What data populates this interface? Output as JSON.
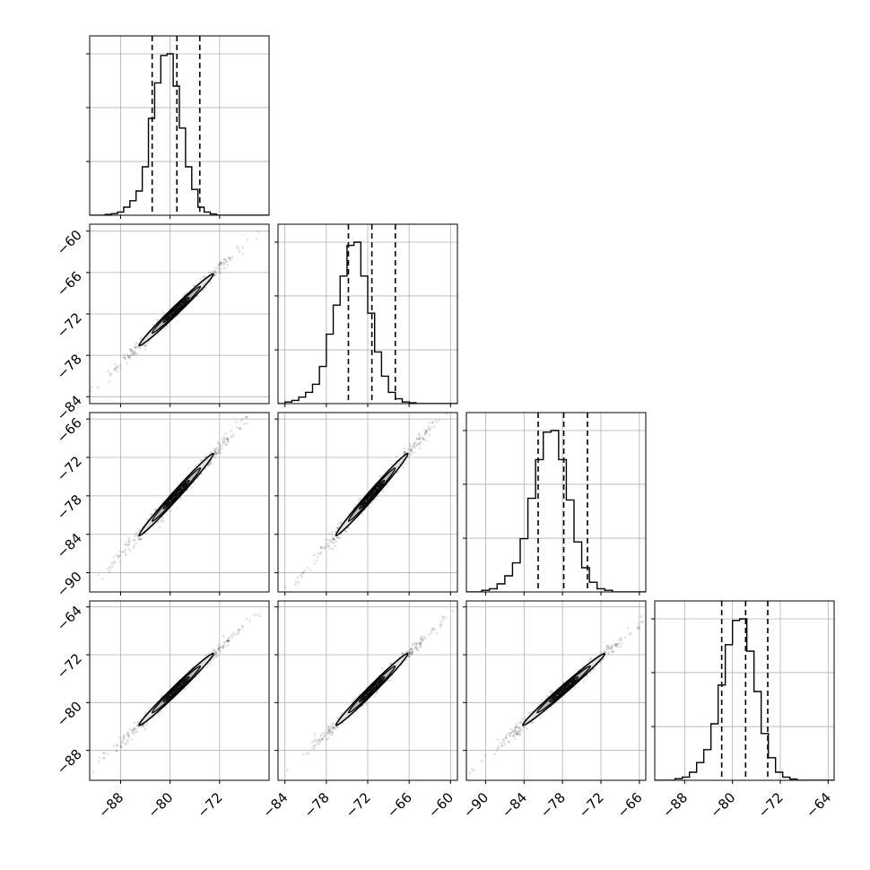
{
  "chart_data": {
    "type": "corner",
    "n_params": 4,
    "grid": true,
    "params": [
      {
        "xlim": [
          -93,
          -64
        ],
        "ticks": [
          -88,
          -80,
          -72
        ],
        "tick_labels": [
          "−88",
          "−80",
          "−72"
        ],
        "quantiles": [
          -82.9,
          -78.9,
          -75.2
        ],
        "hist": {
          "start": -90.5,
          "width": 1.0,
          "values": [
            0.005,
            0.01,
            0.02,
            0.05,
            0.09,
            0.15,
            0.3,
            0.6,
            0.82,
            0.99,
            1.0,
            0.8,
            0.54,
            0.3,
            0.16,
            0.05,
            0.02,
            0.008
          ]
        }
      },
      {
        "xlim": [
          -85,
          -59
        ],
        "ticks": [
          -84,
          -78,
          -72,
          -66,
          -60
        ],
        "tick_labels": [
          "−84",
          "−78",
          "−72",
          "−66",
          "−60"
        ],
        "quantiles": [
          -74.8,
          -71.4,
          -68.0
        ],
        "hist": {
          "start": -84.0,
          "width": 1.0,
          "values": [
            0.01,
            0.02,
            0.04,
            0.07,
            0.12,
            0.23,
            0.43,
            0.61,
            0.79,
            0.98,
            1.0,
            0.79,
            0.56,
            0.32,
            0.17,
            0.07,
            0.03,
            0.01,
            0.005
          ]
        }
      },
      {
        "xlim": [
          -93,
          -65
        ],
        "ticks": [
          -90,
          -84,
          -78,
          -72,
          -66
        ],
        "tick_labels": [
          "−90",
          "−84",
          "−78",
          "−72",
          "−66"
        ],
        "quantiles": [
          -81.8,
          -77.8,
          -74.1
        ],
        "hist": {
          "start": -90.6,
          "width": 1.2,
          "values": [
            0.01,
            0.02,
            0.05,
            0.1,
            0.18,
            0.33,
            0.58,
            0.82,
            0.99,
            1.0,
            0.82,
            0.57,
            0.31,
            0.15,
            0.06,
            0.02,
            0.01
          ]
        }
      },
      {
        "xlim": [
          -93,
          -63
        ],
        "ticks": [
          -88,
          -80,
          -72,
          -64
        ],
        "tick_labels": [
          "−88",
          "−80",
          "−72",
          "−64"
        ],
        "quantiles": [
          -81.8,
          -77.8,
          -74.1
        ],
        "hist": {
          "start": -89.6,
          "width": 1.2,
          "values": [
            0.01,
            0.02,
            0.05,
            0.11,
            0.19,
            0.35,
            0.59,
            0.84,
            0.99,
            1.0,
            0.8,
            0.55,
            0.29,
            0.14,
            0.05,
            0.02,
            0.008
          ]
        }
      }
    ],
    "row_ylims": [
      null,
      [
        -85,
        -59
      ],
      [
        -93,
        -65
      ],
      [
        -93,
        -63
      ]
    ],
    "row_ticks": [
      null,
      {
        "values": [
          -84,
          -78,
          -72,
          -66,
          -60
        ],
        "labels": [
          "−84",
          "−78",
          "−72",
          "−66",
          "−60"
        ]
      },
      {
        "values": [
          -90,
          -84,
          -78,
          -72,
          -66
        ],
        "labels": [
          "−90",
          "−84",
          "−78",
          "−72",
          "−66"
        ]
      },
      {
        "values": [
          -88,
          -80,
          -72,
          -64
        ],
        "labels": [
          "−88",
          "−80",
          "−72",
          "−64"
        ]
      }
    ],
    "means": [
      -79.0,
      -71.4,
      -77.8,
      -77.8
    ],
    "sigmas": [
      3.0,
      2.6,
      3.2,
      3.0
    ]
  }
}
